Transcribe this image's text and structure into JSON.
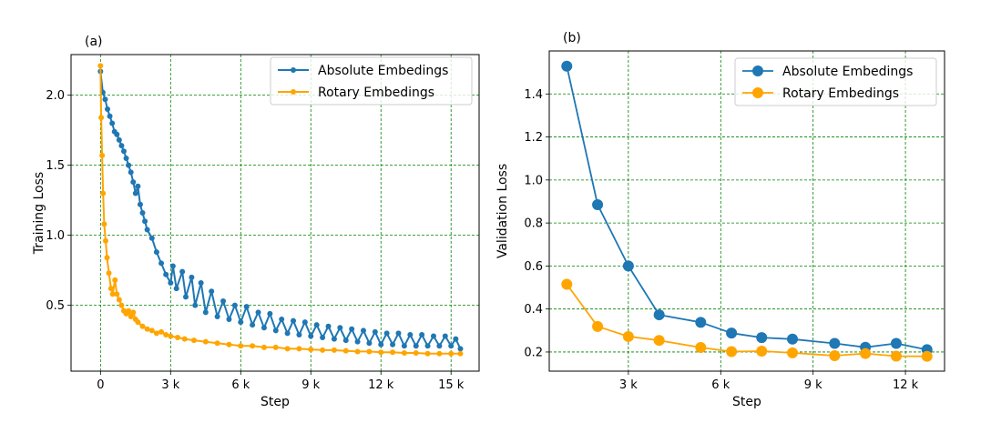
{
  "colors": {
    "absolute": "#1f77b4",
    "rotary": "#ffa500",
    "grid": "#008000"
  },
  "chart_data": [
    {
      "type": "line",
      "panel_label": "(a)",
      "xlabel": "Step",
      "ylabel": "Training Loss",
      "xlim": [
        -1260,
        16200
      ],
      "ylim": [
        0.03,
        2.29
      ],
      "xticks": [
        0,
        3000,
        6000,
        9000,
        12000,
        15000
      ],
      "xtick_labels": [
        "0",
        "3 k",
        "6 k",
        "9 k",
        "12 k",
        "15 k"
      ],
      "yticks": [
        0.5,
        1.0,
        1.5,
        2.0
      ],
      "ytick_labels": [
        "0.5",
        "1.0",
        "1.5",
        "2.0"
      ],
      "grid": true,
      "legend_position": "top-right",
      "series": [
        {
          "name": "Absolute Embedings",
          "color": "#1f77b4",
          "x": [
            0,
            100,
            200,
            300,
            400,
            500,
            600,
            700,
            800,
            900,
            1000,
            1100,
            1200,
            1300,
            1400,
            1500,
            1600,
            1700,
            1800,
            1900,
            2000,
            2200,
            2400,
            2600,
            2800,
            3000,
            3100,
            3250,
            3500,
            3650,
            3900,
            4050,
            4300,
            4500,
            4750,
            5000,
            5250,
            5500,
            5750,
            6000,
            6250,
            6500,
            6750,
            7000,
            7250,
            7500,
            7750,
            8000,
            8250,
            8500,
            8750,
            9000,
            9250,
            9500,
            9750,
            10000,
            10250,
            10500,
            10750,
            11000,
            11250,
            11500,
            11750,
            12000,
            12250,
            12500,
            12750,
            13000,
            13250,
            13500,
            13750,
            14000,
            14250,
            14500,
            14750,
            15000,
            15200,
            15400
          ],
          "y": [
            2.17,
            2.02,
            1.97,
            1.9,
            1.85,
            1.8,
            1.74,
            1.72,
            1.68,
            1.64,
            1.6,
            1.55,
            1.5,
            1.45,
            1.38,
            1.3,
            1.35,
            1.22,
            1.16,
            1.1,
            1.04,
            0.98,
            0.88,
            0.8,
            0.72,
            0.66,
            0.78,
            0.62,
            0.74,
            0.56,
            0.7,
            0.5,
            0.66,
            0.45,
            0.6,
            0.42,
            0.53,
            0.4,
            0.5,
            0.38,
            0.49,
            0.36,
            0.45,
            0.34,
            0.44,
            0.32,
            0.4,
            0.3,
            0.39,
            0.29,
            0.38,
            0.28,
            0.36,
            0.27,
            0.35,
            0.26,
            0.34,
            0.25,
            0.33,
            0.24,
            0.32,
            0.23,
            0.31,
            0.22,
            0.3,
            0.22,
            0.3,
            0.21,
            0.29,
            0.21,
            0.29,
            0.21,
            0.28,
            0.21,
            0.28,
            0.21,
            0.26,
            0.19
          ]
        },
        {
          "name": "Rotary Embedings",
          "color": "#ffa500",
          "x": [
            0,
            30,
            70,
            110,
            160,
            220,
            280,
            360,
            450,
            520,
            620,
            700,
            800,
            900,
            1000,
            1100,
            1200,
            1300,
            1400,
            1500,
            1600,
            1800,
            2000,
            2200,
            2400,
            2600,
            2800,
            3000,
            3300,
            3600,
            4000,
            4500,
            5000,
            5500,
            6000,
            6500,
            7000,
            7500,
            8000,
            8500,
            9000,
            9500,
            10000,
            10500,
            11000,
            11500,
            12000,
            12500,
            13000,
            13500,
            14000,
            14500,
            15000,
            15400
          ],
          "y": [
            2.21,
            1.84,
            1.57,
            1.3,
            1.08,
            0.96,
            0.84,
            0.73,
            0.62,
            0.58,
            0.68,
            0.58,
            0.54,
            0.5,
            0.46,
            0.44,
            0.46,
            0.42,
            0.45,
            0.4,
            0.38,
            0.35,
            0.33,
            0.32,
            0.3,
            0.31,
            0.29,
            0.28,
            0.27,
            0.26,
            0.25,
            0.24,
            0.23,
            0.22,
            0.21,
            0.21,
            0.2,
            0.2,
            0.19,
            0.19,
            0.185,
            0.18,
            0.18,
            0.175,
            0.17,
            0.17,
            0.165,
            0.165,
            0.16,
            0.16,
            0.155,
            0.155,
            0.155,
            0.155
          ]
        }
      ]
    },
    {
      "type": "line",
      "panel_label": "(b)",
      "xlabel": "Step",
      "ylabel": "Validation Loss",
      "xlim": [
        430,
        13270
      ],
      "ylim": [
        0.111,
        1.6
      ],
      "xticks": [
        3000,
        6000,
        9000,
        12000
      ],
      "xtick_labels": [
        "3 k",
        "6 k",
        "9 k",
        "12 k"
      ],
      "yticks": [
        0.2,
        0.4,
        0.6,
        0.8,
        1.0,
        1.2,
        1.4
      ],
      "ytick_labels": [
        "0.2",
        "0.4",
        "0.6",
        "0.8",
        "1.0",
        "1.2",
        "1.4"
      ],
      "grid": true,
      "legend_position": "top-right",
      "series": [
        {
          "name": "Absolute Embedings",
          "color": "#1f77b4",
          "x": [
            1000,
            2000,
            3000,
            4000,
            5350,
            6350,
            7330,
            8330,
            9700,
            10700,
            11700,
            12700
          ],
          "y": [
            1.529,
            0.885,
            0.6,
            0.373,
            0.338,
            0.288,
            0.267,
            0.26,
            0.24,
            0.222,
            0.24,
            0.211
          ]
        },
        {
          "name": "Rotary Embedings",
          "color": "#ffa500",
          "x": [
            1000,
            2000,
            3000,
            4000,
            5350,
            6350,
            7330,
            8330,
            9700,
            10700,
            11700,
            12700
          ],
          "y": [
            0.515,
            0.319,
            0.272,
            0.254,
            0.221,
            0.202,
            0.204,
            0.196,
            0.183,
            0.193,
            0.181,
            0.18
          ]
        }
      ]
    }
  ]
}
